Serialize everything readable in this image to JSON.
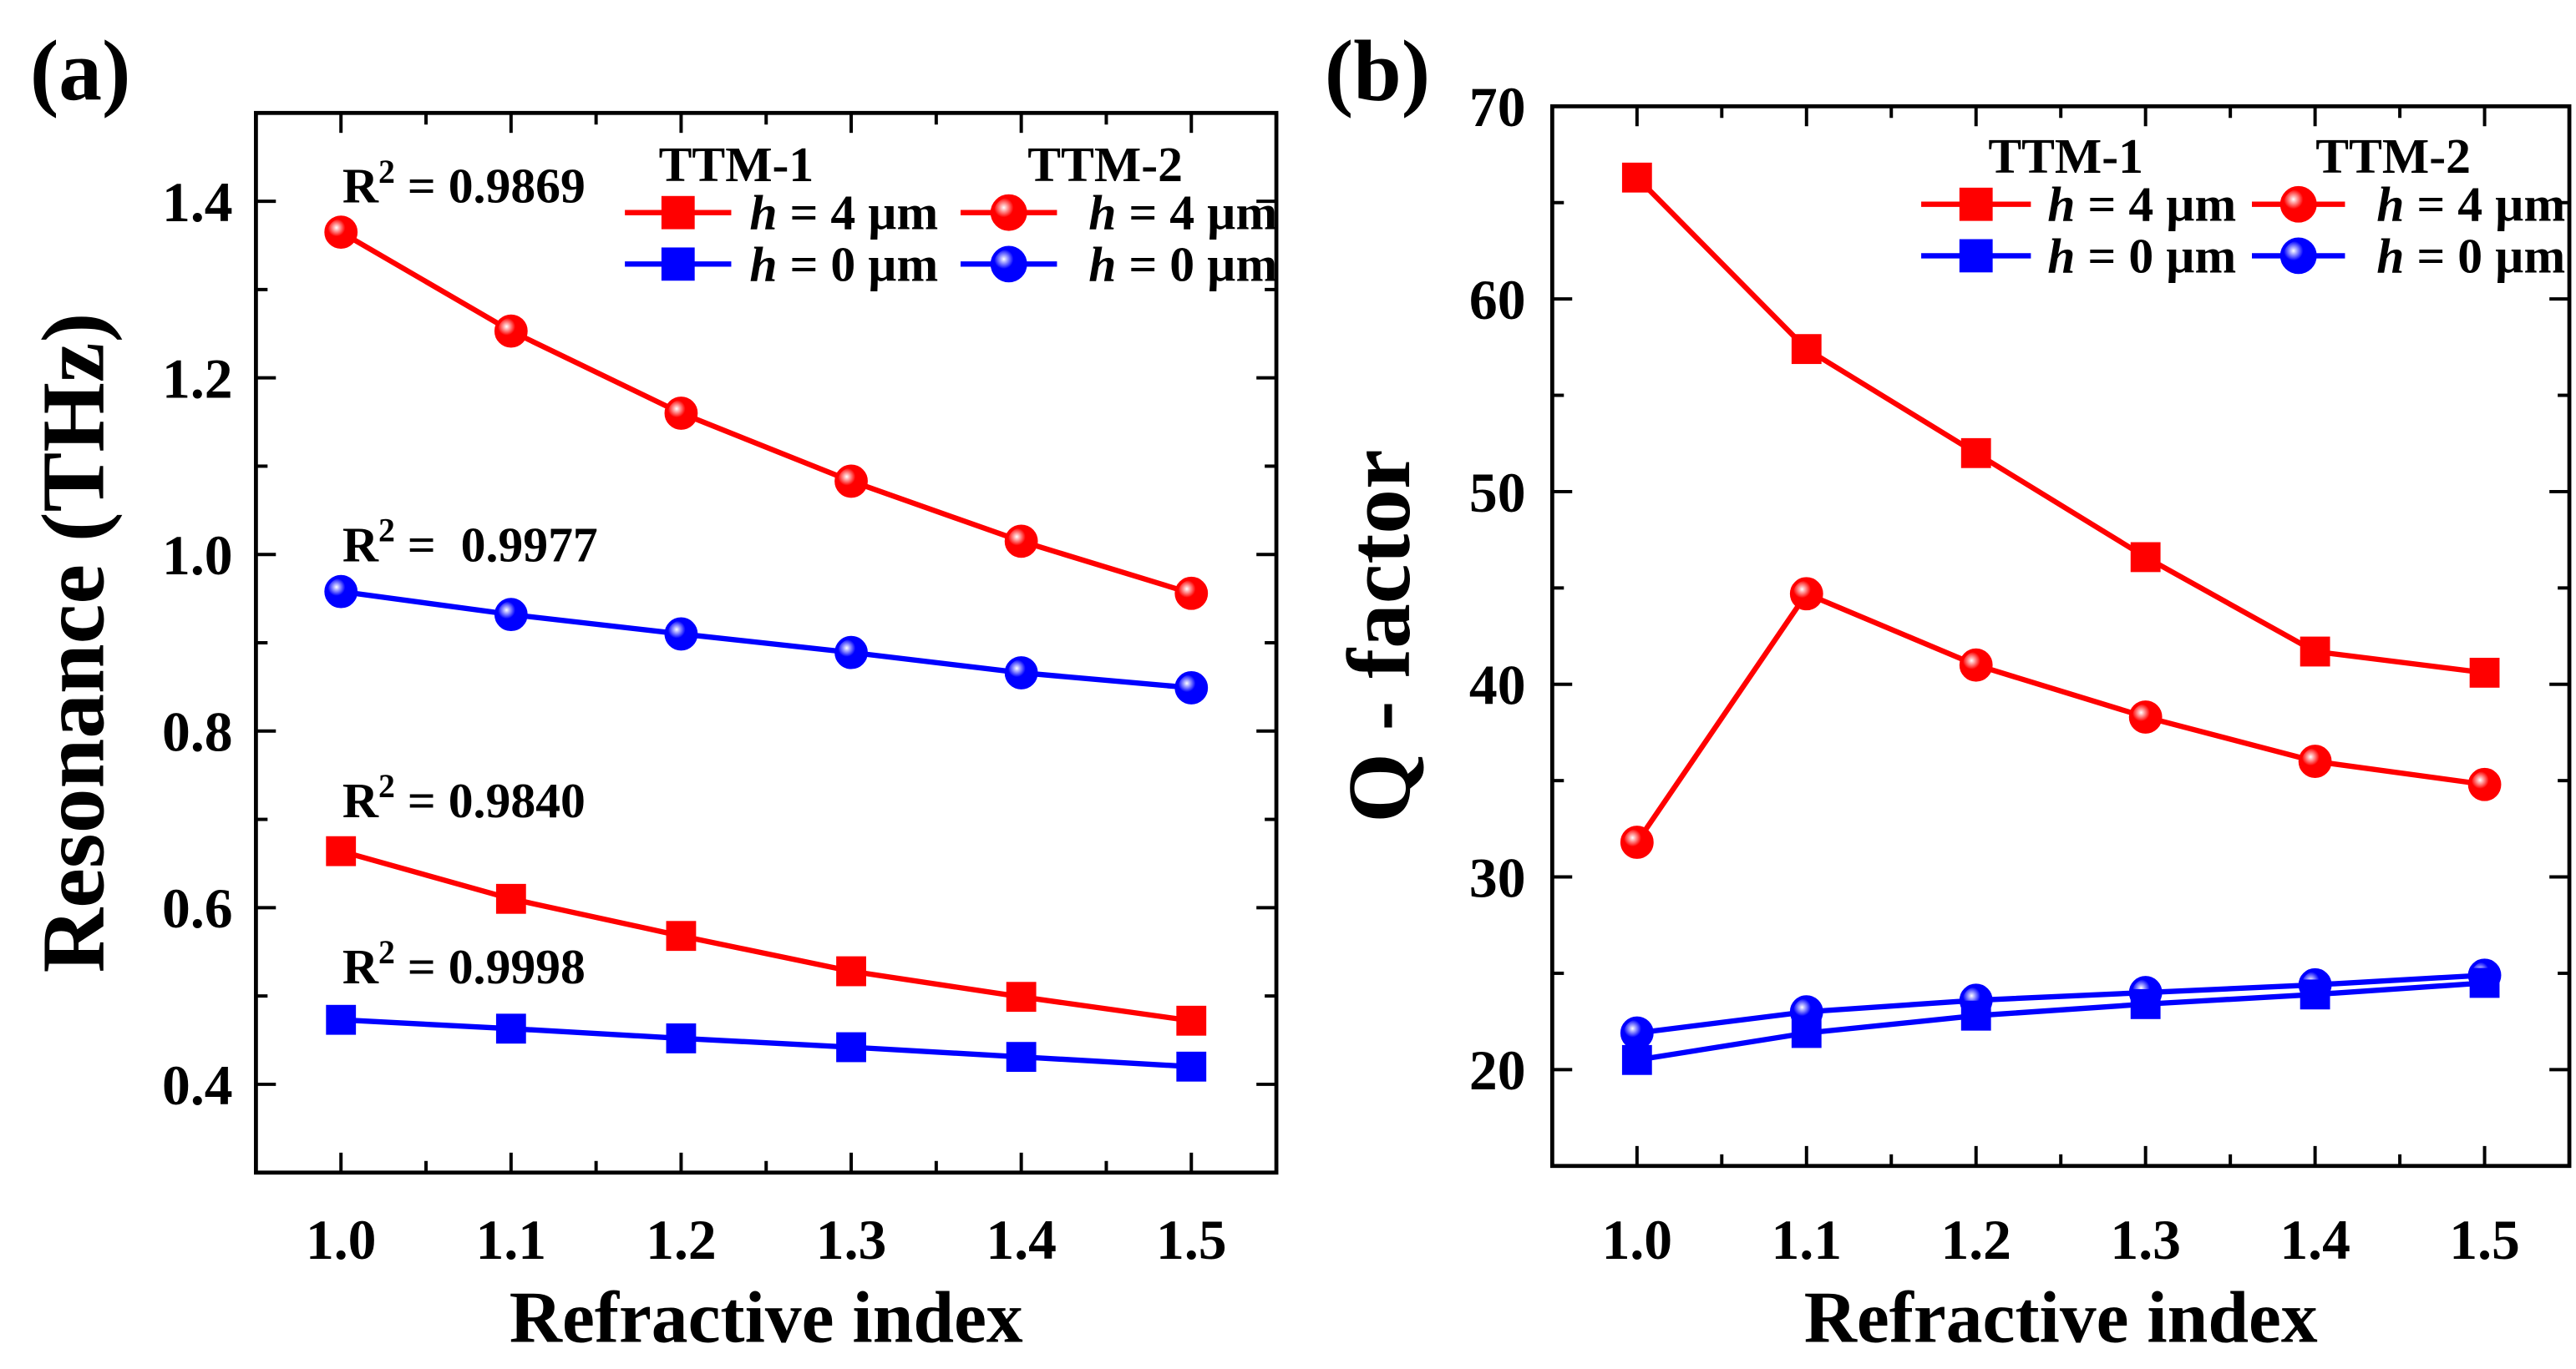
{
  "chart_data": [
    {
      "panel_label": "(a)",
      "type": "line",
      "title": "",
      "xlabel": "Refractive index",
      "ylabel": "Resonance (THz)",
      "x": [
        1.0,
        1.1,
        1.2,
        1.3,
        1.4,
        1.5
      ],
      "xlim": [
        0.95,
        1.55
      ],
      "ylim": [
        0.3,
        1.5
      ],
      "x_ticks": [
        "1.0",
        "1.1",
        "1.2",
        "1.3",
        "1.4",
        "1.5"
      ],
      "y_ticks": [
        "0.4",
        "0.6",
        "0.8",
        "1.0",
        "1.2",
        "1.4"
      ],
      "grid": false,
      "legend": {
        "placement": "top-right",
        "group_titles": [
          "TTM-1",
          "TTM-2"
        ],
        "entries": [
          {
            "group": "TTM-1",
            "label_var": "h",
            "label_rest": " = 4 µm",
            "color": "#ff0000",
            "marker": "square"
          },
          {
            "group": "TTM-1",
            "label_var": "h",
            "label_rest": " = 0 µm",
            "color": "#0000ff",
            "marker": "square"
          },
          {
            "group": "TTM-2",
            "label_var": "h",
            "label_rest": " = 4 µm",
            "color": "#ff0000",
            "marker": "circle"
          },
          {
            "group": "TTM-2",
            "label_var": "h",
            "label_rest": " = 0 µm",
            "color": "#0000ff",
            "marker": "circle"
          }
        ]
      },
      "series": [
        {
          "name": "TTM-2, h = 4 µm",
          "color": "#ff0000",
          "marker": "circle",
          "values": [
            1.365,
            1.253,
            1.16,
            1.083,
            1.015,
            0.956
          ]
        },
        {
          "name": "TTM-2, h = 0 µm",
          "color": "#0000ff",
          "marker": "circle",
          "values": [
            0.958,
            0.932,
            0.91,
            0.889,
            0.866,
            0.849
          ]
        },
        {
          "name": "TTM-1, h = 4 µm",
          "color": "#ff0000",
          "marker": "square",
          "values": [
            0.664,
            0.61,
            0.568,
            0.528,
            0.499,
            0.472
          ]
        },
        {
          "name": "TTM-1, h = 0 µm",
          "color": "#0000ff",
          "marker": "square",
          "values": [
            0.473,
            0.463,
            0.452,
            0.442,
            0.431,
            0.42
          ]
        }
      ],
      "annotations": [
        {
          "prefix": "R",
          "sup": "2",
          "text": " = 0.9869",
          "series": 0
        },
        {
          "prefix": "R",
          "sup": "2",
          "text": " =  0.9977",
          "series": 1
        },
        {
          "prefix": "R",
          "sup": "2",
          "text": " = 0.9840",
          "series": 2
        },
        {
          "prefix": "R",
          "sup": "2",
          "text": " = 0.9998",
          "series": 3
        }
      ]
    },
    {
      "panel_label": "(b)",
      "type": "line",
      "title": "",
      "xlabel": "Refractive index",
      "ylabel": "Q - factor",
      "x": [
        1.0,
        1.1,
        1.2,
        1.3,
        1.4,
        1.5
      ],
      "xlim": [
        0.95,
        1.55
      ],
      "ylim": [
        15,
        70
      ],
      "x_ticks": [
        "1.0",
        "1.1",
        "1.2",
        "1.3",
        "1.4",
        "1.5"
      ],
      "y_ticks": [
        "20",
        "30",
        "40",
        "50",
        "60",
        "70"
      ],
      "grid": false,
      "legend": {
        "placement": "top-right",
        "group_titles": [
          "TTM-1",
          "TTM-2"
        ],
        "entries": [
          {
            "group": "TTM-1",
            "label_var": "h",
            "label_rest": " = 4 µm",
            "color": "#ff0000",
            "marker": "square"
          },
          {
            "group": "TTM-1",
            "label_var": "h",
            "label_rest": " = 0 µm",
            "color": "#0000ff",
            "marker": "square"
          },
          {
            "group": "TTM-2",
            "label_var": "h",
            "label_rest": " = 4 µm",
            "color": "#ff0000",
            "marker": "circle"
          },
          {
            "group": "TTM-2",
            "label_var": "h",
            "label_rest": " = 0 µm",
            "color": "#0000ff",
            "marker": "circle"
          }
        ]
      },
      "series": [
        {
          "name": "TTM-1, h = 4 µm",
          "color": "#ff0000",
          "marker": "square",
          "values": [
            66.3,
            57.4,
            52.0,
            46.6,
            41.7,
            40.6
          ]
        },
        {
          "name": "TTM-2, h = 4 µm",
          "color": "#ff0000",
          "marker": "circle",
          "values": [
            31.8,
            44.7,
            41.0,
            38.3,
            36.0,
            34.8
          ]
        },
        {
          "name": "TTM-2, h = 0 µm",
          "color": "#0000ff",
          "marker": "circle",
          "values": [
            21.9,
            23.0,
            23.6,
            24.0,
            24.4,
            24.9
          ]
        },
        {
          "name": "TTM-1, h = 0 µm",
          "color": "#0000ff",
          "marker": "square",
          "values": [
            20.5,
            21.9,
            22.8,
            23.4,
            23.9,
            24.5
          ]
        }
      ],
      "annotations": []
    }
  ]
}
